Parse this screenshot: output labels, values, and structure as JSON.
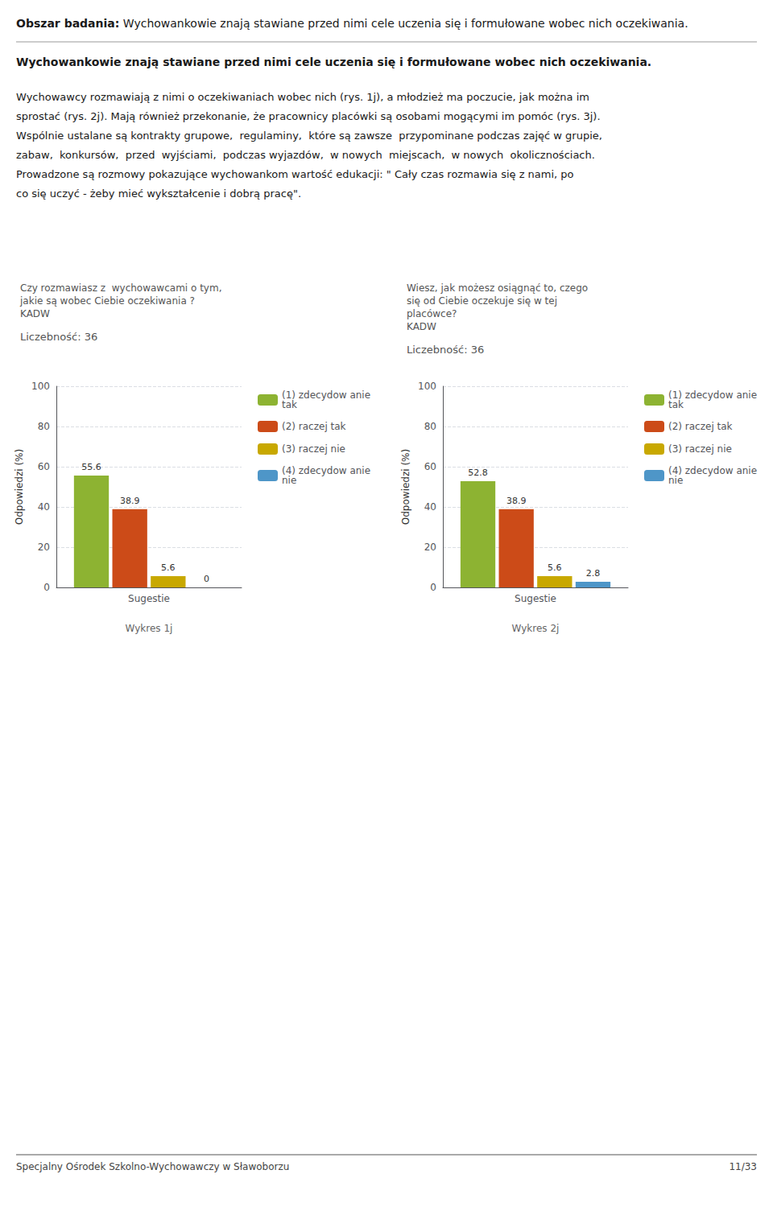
{
  "title": "Obszar badania: Wychowankowie znają stawiane przed nimi cele uczenia się i formułowane wobec nich oczekiwania.",
  "section": "Wychowankowie znają stawiane przed nimi cele uczenia się i formułowane wobec nich oczekiwania.",
  "paragraph": [
    "Wychowawcy rozmawiają z nimi o oczekiwaniach wobec nich (rys. 1j), a młodzież ma poczucie, jak można im",
    "sprostać (rys. 2j). Mają również przekonanie, że pracownicy placówki są osobami mogącymi im pomóc (rys. 3j).",
    "Wspólnie ustalane są kontrakty grupowe,  regulaminy,  które są zawsze  przypominane podczas zajęć w grupie,",
    "zabaw,  konkursów,  przed  wyjściami,  podczas wyjazdów,  w nowych  miejscach,  w nowych  okolicznościach.",
    "Prowadzone są rozmowy pokazujące wychowankom wartość edukacji: \" Cały czas rozmawia się z nami, po",
    "co się uczyć - żeby mieć wykształcenie i dobrą pracę\"."
  ],
  "footer": "Specjalny Ośrodek Szkolno-Wychowawczy w Sławoborzu",
  "page_number": "11/33",
  "chart_data": [
    {
      "type": "bar",
      "title": "Czy rozmawiasz z  wychowawcami o tym,\njakie są wobec Ciebie oczekiwania ?\nKADW",
      "subtitle": "Liczebność: 36",
      "categories": [
        "Sugestie"
      ],
      "series": [
        {
          "name": "(1) zdecydow anie\ntak",
          "color": "#8db332",
          "values": [
            55.6
          ]
        },
        {
          "name": "(2) raczej tak",
          "color": "#cc4b18",
          "values": [
            38.9
          ]
        },
        {
          "name": "(3) raczej nie",
          "color": "#c8a800",
          "values": [
            5.6
          ]
        },
        {
          "name": "(4) zdecydow anie\nnie",
          "color": "#4e96c8",
          "values": [
            0
          ]
        }
      ],
      "ylabel": "Odpowiedzi (%)",
      "ylim": [
        0,
        100
      ],
      "yticks": [
        0,
        20,
        40,
        60,
        80,
        100
      ],
      "grid": true,
      "data_labels": true,
      "legend": "right",
      "annotations": [
        "Wykres 1j"
      ]
    },
    {
      "type": "bar",
      "title": "Wiesz, jak możesz osiągnąć to, czego\nsię od Ciebie oczekuje się w tej\nplacówce?\nKADW",
      "subtitle": "Liczebność: 36",
      "categories": [
        "Sugestie"
      ],
      "series": [
        {
          "name": "(1) zdecydow anie\ntak",
          "color": "#8db332",
          "values": [
            52.8
          ]
        },
        {
          "name": "(2) raczej tak",
          "color": "#cc4b18",
          "values": [
            38.9
          ]
        },
        {
          "name": "(3) raczej nie",
          "color": "#c8a800",
          "values": [
            5.6
          ]
        },
        {
          "name": "(4) zdecydow anie\nnie",
          "color": "#4e96c8",
          "values": [
            2.8
          ]
        }
      ],
      "ylabel": "Odpowiedzi (%)",
      "ylim": [
        0,
        100
      ],
      "yticks": [
        0,
        20,
        40,
        60,
        80,
        100
      ],
      "grid": true,
      "data_labels": true,
      "legend": "right",
      "annotations": [
        "Wykres 2j"
      ]
    }
  ]
}
